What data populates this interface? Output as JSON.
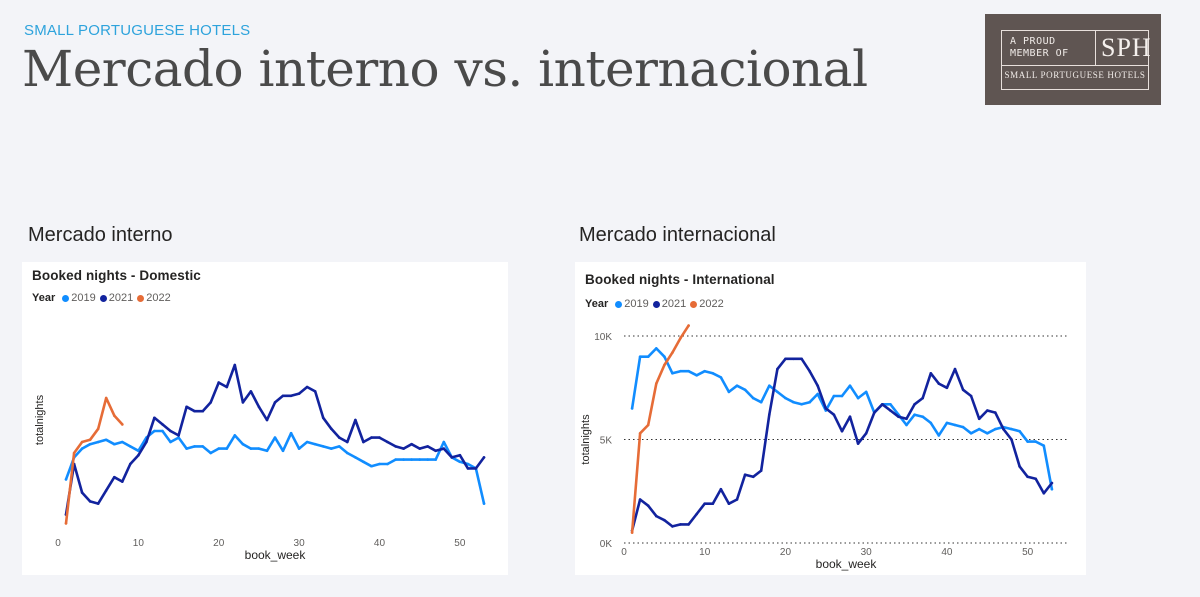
{
  "header": {
    "kicker": "SMALL PORTUGUESE HOTELS",
    "title": "Mercado interno vs. internacional"
  },
  "badge": {
    "line1": "A PROUD",
    "line2": "MEMBER OF",
    "mark": "SPH",
    "name": "SMALL PORTUGUESE HOTELS",
    "bg_color": "#5f5552"
  },
  "sections": {
    "domestic_label": "Mercado interno",
    "international_label": "Mercado internacional"
  },
  "chart_data": [
    {
      "type": "line",
      "title": "Booked nights - Domestic",
      "xlabel": "book_week",
      "ylabel": "totalnights",
      "legend_title": "Year",
      "xlim": [
        0,
        54
      ],
      "xticks": [
        0,
        10,
        20,
        30,
        40,
        50
      ],
      "yticks": [],
      "ylim": [
        0,
        100
      ],
      "grid": false,
      "legend_position": "top-left",
      "series": [
        {
          "name": "2019",
          "color": "#118dff",
          "x": [
            1,
            2,
            3,
            4,
            5,
            6,
            7,
            8,
            9,
            10,
            11,
            12,
            13,
            14,
            15,
            16,
            17,
            18,
            19,
            20,
            21,
            22,
            23,
            24,
            25,
            26,
            27,
            28,
            29,
            30,
            31,
            32,
            33,
            34,
            35,
            36,
            37,
            38,
            39,
            40,
            41,
            42,
            43,
            44,
            45,
            46,
            47,
            48,
            49,
            50,
            51,
            52,
            53
          ],
          "values": [
            23,
            33,
            37,
            39,
            40,
            41,
            39,
            40,
            38,
            36,
            42,
            45,
            45,
            40,
            42,
            37,
            38,
            38,
            35,
            37,
            37,
            43,
            39,
            37,
            37,
            36,
            42,
            36,
            44,
            37,
            40,
            39,
            38,
            37,
            38,
            35,
            33,
            31,
            29,
            30,
            30,
            32,
            32,
            32,
            32,
            32,
            32,
            40,
            33,
            31,
            30,
            28,
            12
          ]
        },
        {
          "name": "2021",
          "color": "#12239e",
          "x": [
            1,
            2,
            3,
            4,
            5,
            6,
            7,
            8,
            9,
            10,
            11,
            12,
            13,
            14,
            15,
            16,
            17,
            18,
            19,
            20,
            21,
            22,
            23,
            24,
            25,
            26,
            27,
            28,
            29,
            30,
            31,
            32,
            33,
            34,
            35,
            36,
            37,
            38,
            39,
            40,
            41,
            42,
            43,
            44,
            45,
            46,
            47,
            48,
            49,
            50,
            51,
            52,
            53
          ],
          "values": [
            7,
            30,
            17,
            13,
            12,
            18,
            24,
            22,
            30,
            34,
            40,
            51,
            48,
            45,
            43,
            56,
            54,
            54,
            58,
            67,
            65,
            75,
            58,
            63,
            56,
            50,
            58,
            61,
            61,
            62,
            65,
            63,
            51,
            46,
            42,
            40,
            50,
            40,
            42,
            42,
            40,
            38,
            37,
            39,
            37,
            38,
            36,
            37,
            33,
            34,
            28,
            28,
            33
          ]
        },
        {
          "name": "2022",
          "color": "#e66c37",
          "x": [
            1,
            2,
            3,
            4,
            5,
            6,
            7,
            8
          ],
          "values": [
            3,
            35,
            40,
            41,
            46,
            60,
            52,
            48
          ]
        }
      ]
    },
    {
      "type": "line",
      "title": "Booked nights - International",
      "xlabel": "book_week",
      "ylabel": "totalnights",
      "legend_title": "Year",
      "xlim": [
        0,
        55
      ],
      "xticks": [
        0,
        10,
        20,
        30,
        40,
        50
      ],
      "ylim": [
        0,
        10000
      ],
      "yticks": [
        0,
        5000,
        10000
      ],
      "ytick_labels": [
        "0K",
        "5K",
        "10K"
      ],
      "grid": true,
      "legend_position": "top-left",
      "series": [
        {
          "name": "2019",
          "color": "#118dff",
          "x": [
            1,
            2,
            3,
            4,
            5,
            6,
            7,
            8,
            9,
            10,
            11,
            12,
            13,
            14,
            15,
            16,
            17,
            18,
            19,
            20,
            21,
            22,
            23,
            24,
            25,
            26,
            27,
            28,
            29,
            30,
            31,
            32,
            33,
            34,
            35,
            36,
            37,
            38,
            39,
            40,
            41,
            42,
            43,
            44,
            45,
            46,
            47,
            48,
            49,
            50,
            51,
            52,
            53
          ],
          "values": [
            6500,
            9000,
            9000,
            9400,
            9000,
            8200,
            8300,
            8300,
            8100,
            8300,
            8200,
            8000,
            7300,
            7600,
            7400,
            7000,
            6800,
            7600,
            7300,
            7000,
            6800,
            6700,
            6800,
            7200,
            6400,
            7100,
            7100,
            7600,
            7000,
            7300,
            6300,
            6700,
            6700,
            6200,
            5700,
            6200,
            6100,
            5800,
            5200,
            5800,
            5700,
            5600,
            5300,
            5500,
            5300,
            5500,
            5600,
            5500,
            5400,
            4900,
            4900,
            4700,
            2600
          ]
        },
        {
          "name": "2021",
          "color": "#12239e",
          "x": [
            1,
            2,
            3,
            4,
            5,
            6,
            7,
            8,
            9,
            10,
            11,
            12,
            13,
            14,
            15,
            16,
            17,
            18,
            19,
            20,
            21,
            22,
            23,
            24,
            25,
            26,
            27,
            28,
            29,
            30,
            31,
            32,
            33,
            34,
            35,
            36,
            37,
            38,
            39,
            40,
            41,
            42,
            43,
            44,
            45,
            46,
            47,
            48,
            49,
            50,
            51,
            52,
            53
          ],
          "values": [
            600,
            2100,
            1800,
            1300,
            1100,
            800,
            900,
            900,
            1400,
            1900,
            1900,
            2600,
            1900,
            2100,
            3300,
            3200,
            3500,
            6200,
            8400,
            8900,
            8900,
            8900,
            8300,
            7600,
            6500,
            6200,
            5400,
            6100,
            4800,
            5300,
            6300,
            6700,
            6400,
            6100,
            6000,
            6700,
            7000,
            8200,
            7700,
            7500,
            8400,
            7400,
            7100,
            6000,
            6400,
            6300,
            5500,
            5000,
            3700,
            3200,
            3100,
            2400,
            2900
          ]
        },
        {
          "name": "2022",
          "color": "#e66c37",
          "x": [
            1,
            2,
            3,
            4,
            5,
            6,
            7,
            8
          ],
          "values": [
            500,
            5300,
            5700,
            7700,
            8600,
            9200,
            9900,
            10500
          ]
        }
      ]
    }
  ]
}
